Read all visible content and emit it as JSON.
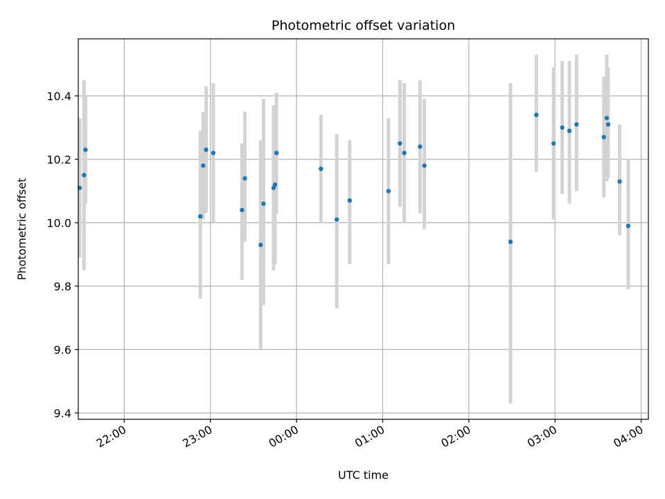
{
  "chart_data": {
    "type": "scatter",
    "title": "Photometric offset variation",
    "xlabel": "UTC time",
    "ylabel": "Photometric offset",
    "x_unit": "UTC time (HH:MM)",
    "xlim": [
      "21:28",
      "04:05"
    ],
    "ylim": [
      9.38,
      10.58
    ],
    "x_ticks": [
      {
        "label": "22:00",
        "t": "22:00"
      },
      {
        "label": "23:00",
        "t": "23:00"
      },
      {
        "label": "00:00",
        "t": "00:00"
      },
      {
        "label": "01:00",
        "t": "01:00"
      },
      {
        "label": "02:00",
        "t": "02:00"
      },
      {
        "label": "03:00",
        "t": "03:00"
      },
      {
        "label": "04:00",
        "t": "04:00"
      }
    ],
    "y_ticks": [
      9.4,
      9.6,
      9.8,
      10.0,
      10.2,
      10.4
    ],
    "y_tick_labels": [
      "9.4",
      "9.6",
      "9.8",
      "10.0",
      "10.2",
      "10.4"
    ],
    "grid": true,
    "colors": {
      "point": "#1f77b4",
      "errorbar": "#d3d3d3",
      "grid": "#b0b0b0"
    },
    "series": [
      {
        "points": [
          {
            "t": "21:29",
            "y": 10.11,
            "lo": 9.89,
            "hi": 10.33
          },
          {
            "t": "21:32",
            "y": 10.15,
            "lo": 9.85,
            "hi": 10.45
          },
          {
            "t": "21:33",
            "y": 10.23,
            "lo": 10.06,
            "hi": 10.4
          },
          {
            "t": "22:53",
            "y": 10.02,
            "lo": 9.76,
            "hi": 10.29
          },
          {
            "t": "22:55",
            "y": 10.18,
            "lo": 10.01,
            "hi": 10.35
          },
          {
            "t": "22:57",
            "y": 10.23,
            "lo": 10.03,
            "hi": 10.43
          },
          {
            "t": "23:02",
            "y": 10.22,
            "lo": 10.0,
            "hi": 10.44
          },
          {
            "t": "23:22",
            "y": 10.04,
            "lo": 9.82,
            "hi": 10.25
          },
          {
            "t": "23:24",
            "y": 10.14,
            "lo": 9.94,
            "hi": 10.35
          },
          {
            "t": "23:35",
            "y": 9.93,
            "lo": 9.6,
            "hi": 10.26
          },
          {
            "t": "23:37",
            "y": 10.06,
            "lo": 9.74,
            "hi": 10.39
          },
          {
            "t": "23:44",
            "y": 10.11,
            "lo": 9.85,
            "hi": 10.37
          },
          {
            "t": "23:45",
            "y": 10.12,
            "lo": 9.87,
            "hi": 10.36
          },
          {
            "t": "23:46",
            "y": 10.22,
            "lo": 10.03,
            "hi": 10.41
          },
          {
            "t": "00:17",
            "y": 10.17,
            "lo": 10.0,
            "hi": 10.34
          },
          {
            "t": "00:28",
            "y": 10.01,
            "lo": 9.73,
            "hi": 10.28
          },
          {
            "t": "00:37",
            "y": 10.07,
            "lo": 9.87,
            "hi": 10.26
          },
          {
            "t": "01:04",
            "y": 10.1,
            "lo": 9.87,
            "hi": 10.33
          },
          {
            "t": "01:12",
            "y": 10.25,
            "lo": 10.05,
            "hi": 10.45
          },
          {
            "t": "01:15",
            "y": 10.22,
            "lo": 10.0,
            "hi": 10.44
          },
          {
            "t": "01:26",
            "y": 10.24,
            "lo": 10.03,
            "hi": 10.45
          },
          {
            "t": "01:29",
            "y": 10.18,
            "lo": 9.98,
            "hi": 10.39
          },
          {
            "t": "02:29",
            "y": 9.94,
            "lo": 9.43,
            "hi": 10.44
          },
          {
            "t": "02:47",
            "y": 10.34,
            "lo": 10.16,
            "hi": 10.53
          },
          {
            "t": "02:59",
            "y": 10.25,
            "lo": 10.01,
            "hi": 10.49
          },
          {
            "t": "03:05",
            "y": 10.3,
            "lo": 10.09,
            "hi": 10.51
          },
          {
            "t": "03:10",
            "y": 10.29,
            "lo": 10.06,
            "hi": 10.51
          },
          {
            "t": "03:15",
            "y": 10.31,
            "lo": 10.1,
            "hi": 10.53
          },
          {
            "t": "03:34",
            "y": 10.27,
            "lo": 10.08,
            "hi": 10.46
          },
          {
            "t": "03:36",
            "y": 10.33,
            "lo": 10.13,
            "hi": 10.53
          },
          {
            "t": "03:37",
            "y": 10.31,
            "lo": 10.14,
            "hi": 10.49
          },
          {
            "t": "03:45",
            "y": 10.13,
            "lo": 9.96,
            "hi": 10.31
          },
          {
            "t": "03:51",
            "y": 9.99,
            "lo": 9.79,
            "hi": 10.2
          }
        ]
      }
    ]
  }
}
